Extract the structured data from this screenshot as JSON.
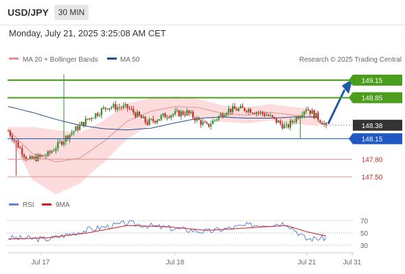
{
  "header": {
    "symbol": "USD/JPY",
    "timeframe": "30 MIN"
  },
  "datetime": "Monday, July 21, 2025 3:25:08 AM CET",
  "legend": {
    "bollinger": "MA 20 + Bollinger Bands",
    "ma50": "MA 50",
    "credit": "Research © 2025 Trading Central",
    "rsi": "RSI",
    "rsi_ma": "9MA"
  },
  "colors": {
    "up": "#2e8b2e",
    "down": "#c62828",
    "bb_fill": "#fbd3d3",
    "ma20": "#e78f8f",
    "ma50": "#1f4e8c",
    "resistance": "#4a9e1c",
    "support": "#1f57c3",
    "target": "#e98c8c",
    "current": "#333333",
    "rsi": "#5b83d6",
    "rsi_ma": "#d11d1d"
  },
  "levels": [
    {
      "label": "149.15",
      "value": 149.15,
      "kind": "resistance"
    },
    {
      "label": "148.85",
      "value": 148.85,
      "kind": "resistance"
    },
    {
      "label": "148.38",
      "value": 148.38,
      "kind": "current"
    },
    {
      "label": "148.15",
      "value": 148.15,
      "kind": "support"
    },
    {
      "label": "147.80",
      "value": 147.8,
      "kind": "target"
    },
    {
      "label": "147.50",
      "value": 147.5,
      "kind": "target"
    }
  ],
  "x_labels": [
    "Jul 17",
    "Jul 18",
    "Jul 21",
    "Jul 31"
  ],
  "rsi_labels": [
    "70",
    "50",
    "30"
  ],
  "chart_data": [
    {
      "type": "candlestick",
      "title": "USD/JPY 30 MIN",
      "ylim": [
        147.35,
        149.3
      ],
      "series": [
        {
          "name": "MA 20 + Bollinger Bands",
          "x": [
            0,
            12,
            24,
            36,
            48,
            60,
            72,
            84,
            96,
            108,
            120,
            132,
            144,
            156
          ],
          "values": [
            148.3,
            147.9,
            147.75,
            147.82,
            148.1,
            148.45,
            148.62,
            148.7,
            148.68,
            148.58,
            148.55,
            148.6,
            148.55,
            148.5
          ]
        },
        {
          "name": "MA 50",
          "x": [
            0,
            12,
            24,
            36,
            48,
            60,
            72,
            84,
            96,
            108,
            120,
            132,
            144,
            156
          ],
          "values": [
            148.7,
            148.6,
            148.48,
            148.38,
            148.32,
            148.3,
            148.33,
            148.42,
            148.5,
            148.52,
            148.5,
            148.5,
            148.52,
            148.52
          ]
        }
      ],
      "ohlc_x": [
        0,
        10,
        20,
        30,
        40,
        50,
        60,
        70,
        80,
        90,
        100,
        110,
        120,
        130,
        140,
        150,
        160
      ],
      "close": [
        148.28,
        147.78,
        147.88,
        148.2,
        148.48,
        148.7,
        148.68,
        148.42,
        148.56,
        148.6,
        148.36,
        148.64,
        148.66,
        148.56,
        148.34,
        148.68,
        148.38
      ],
      "levels": [
        149.15,
        148.85,
        148.38,
        148.15,
        147.8,
        147.5
      ],
      "annotation": "arrow from 148.38 towards 149.15"
    },
    {
      "type": "line",
      "title": "RSI",
      "ylim": [
        20,
        80
      ],
      "series": [
        {
          "name": "RSI",
          "x": [
            0,
            20,
            40,
            60,
            80,
            100,
            120,
            140,
            150,
            160
          ],
          "values": [
            42,
            40,
            55,
            66,
            58,
            52,
            62,
            66,
            40,
            42
          ]
        },
        {
          "name": "9MA",
          "x": [
            0,
            20,
            40,
            60,
            80,
            100,
            120,
            140,
            150,
            160
          ],
          "values": [
            40,
            42,
            50,
            62,
            60,
            54,
            58,
            62,
            52,
            45
          ]
        }
      ]
    }
  ]
}
